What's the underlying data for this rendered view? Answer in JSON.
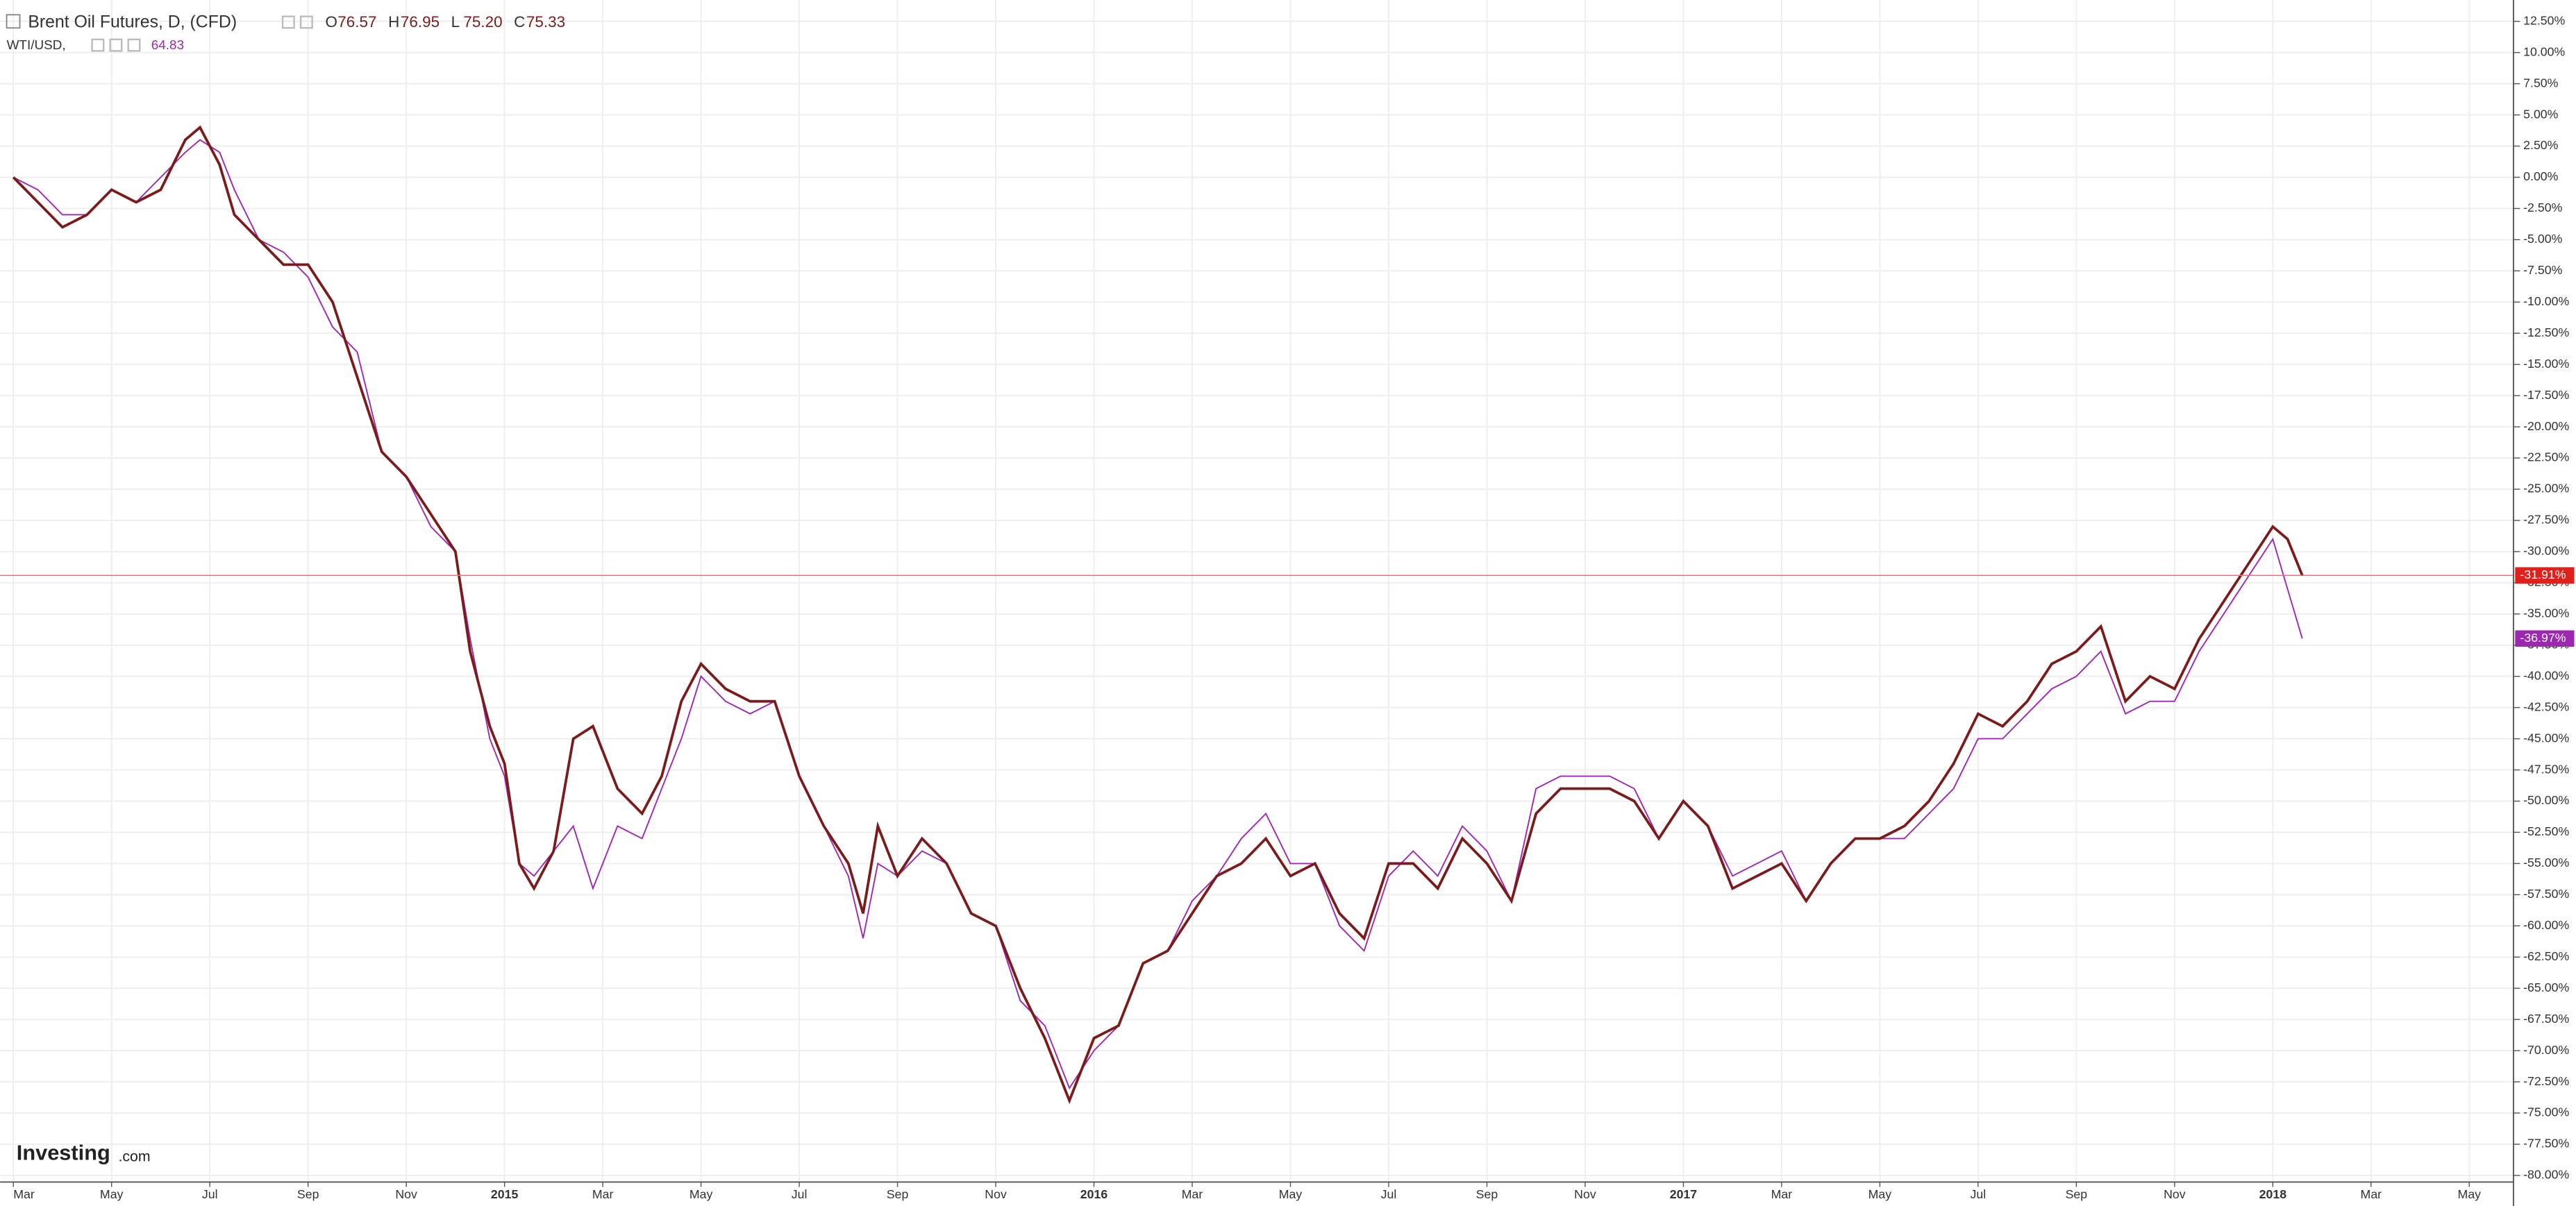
{
  "header": {
    "symbol": "Brent Oil Futures, D, (CFD)",
    "ohlc": [
      {
        "label": "O",
        "value": "76.57"
      },
      {
        "label": "H",
        "value": "76.95"
      },
      {
        "label": "L",
        "value": "75.20"
      },
      {
        "label": "C",
        "value": "75.33"
      }
    ],
    "compare": "WTI/USD,",
    "compare_value": "64.83"
  },
  "logo": {
    "brand": "Investing",
    "suffix": ".com"
  },
  "chart_data": {
    "type": "line",
    "grid": true,
    "xlim": [
      -0.27,
      50.9
    ],
    "ylim": [
      -80.53,
      14.21
    ],
    "xticks": [
      {
        "value": 0,
        "label": "Mar"
      },
      {
        "value": 2,
        "label": "May"
      },
      {
        "value": 4,
        "label": "Jul"
      },
      {
        "value": 6,
        "label": "Sep"
      },
      {
        "value": 8,
        "label": "Nov"
      },
      {
        "value": 10,
        "label": "2015"
      },
      {
        "value": 12,
        "label": "Mar"
      },
      {
        "value": 14,
        "label": "May"
      },
      {
        "value": 16,
        "label": "Jul"
      },
      {
        "value": 18,
        "label": "Sep"
      },
      {
        "value": 20,
        "label": "Nov"
      },
      {
        "value": 22,
        "label": "2016"
      },
      {
        "value": 24,
        "label": "Mar"
      },
      {
        "value": 26,
        "label": "May"
      },
      {
        "value": 28,
        "label": "Jul"
      },
      {
        "value": 30,
        "label": "Sep"
      },
      {
        "value": 32,
        "label": "Nov"
      },
      {
        "value": 34,
        "label": "2017"
      },
      {
        "value": 36,
        "label": "Mar"
      },
      {
        "value": 38,
        "label": "May"
      },
      {
        "value": 40,
        "label": "Jul"
      },
      {
        "value": 42,
        "label": "Sep"
      },
      {
        "value": 44,
        "label": "Nov"
      },
      {
        "value": 46,
        "label": "2018"
      },
      {
        "value": 48,
        "label": "Mar"
      },
      {
        "value": 50,
        "label": "May"
      }
    ],
    "yticks": [
      {
        "value": 12.5,
        "label": "12.50%"
      },
      {
        "value": 10,
        "label": "10.00%"
      },
      {
        "value": 7.5,
        "label": "7.50%"
      },
      {
        "value": 5,
        "label": "5.00%"
      },
      {
        "value": 2.5,
        "label": "2.50%"
      },
      {
        "value": 0,
        "label": "0.00%"
      },
      {
        "value": -2.5,
        "label": "-2.50%"
      },
      {
        "value": -5,
        "label": "-5.00%"
      },
      {
        "value": -7.5,
        "label": "-7.50%"
      },
      {
        "value": -10,
        "label": "-10.00%"
      },
      {
        "value": -12.5,
        "label": "-12.50%"
      },
      {
        "value": -15,
        "label": "-15.00%"
      },
      {
        "value": -17.5,
        "label": "-17.50%"
      },
      {
        "value": -20,
        "label": "-20.00%"
      },
      {
        "value": -22.5,
        "label": "-22.50%"
      },
      {
        "value": -25,
        "label": "-25.00%"
      },
      {
        "value": -27.5,
        "label": "-27.50%"
      },
      {
        "value": -30,
        "label": "-30.00%"
      },
      {
        "value": -32.5,
        "label": "-32.50%"
      },
      {
        "value": -35,
        "label": "-35.00%"
      },
      {
        "value": -37.5,
        "label": "-37.50%"
      },
      {
        "value": -40,
        "label": "-40.00%"
      },
      {
        "value": -42.5,
        "label": "-42.50%"
      },
      {
        "value": -45,
        "label": "-45.00%"
      },
      {
        "value": -47.5,
        "label": "-47.50%"
      },
      {
        "value": -50,
        "label": "-50.00%"
      },
      {
        "value": -52.5,
        "label": "-52.50%"
      },
      {
        "value": -55,
        "label": "-55.00%"
      },
      {
        "value": -57.5,
        "label": "-57.50%"
      },
      {
        "value": -60,
        "label": "-60.00%"
      },
      {
        "value": -62.5,
        "label": "-62.50%"
      },
      {
        "value": -65,
        "label": "-65.00%"
      },
      {
        "value": -67.5,
        "label": "-67.50%"
      },
      {
        "value": -70,
        "label": "-70.00%"
      },
      {
        "value": -72.5,
        "label": "-72.50%"
      },
      {
        "value": -75,
        "label": "-75.00%"
      },
      {
        "value": -77.5,
        "label": "-77.50%"
      },
      {
        "value": -80,
        "label": "-80.00%"
      }
    ],
    "x": [
      0,
      0.5,
      1,
      1.5,
      2,
      2.5,
      3,
      3.5,
      3.8,
      4.2,
      4.5,
      5,
      5.5,
      6,
      6.5,
      7,
      7.5,
      8,
      8.5,
      9,
      9.3,
      9.7,
      10,
      10.3,
      10.6,
      11,
      11.4,
      11.8,
      12.3,
      12.8,
      13.2,
      13.6,
      14,
      14.5,
      15,
      15.5,
      16,
      16.5,
      17,
      17.3,
      17.6,
      18,
      18.5,
      19,
      19.5,
      20,
      20.5,
      21,
      21.5,
      22,
      22.5,
      23,
      23.5,
      24,
      24.5,
      25,
      25.5,
      26,
      26.5,
      27,
      27.5,
      28,
      28.5,
      29,
      29.5,
      30,
      30.5,
      31,
      31.5,
      32,
      32.5,
      33,
      33.5,
      34,
      34.5,
      35,
      35.5,
      36,
      36.5,
      37,
      37.5,
      38,
      38.5,
      39,
      39.5,
      40,
      40.5,
      41,
      41.5,
      42,
      42.5,
      43,
      43.5,
      44,
      44.5,
      45,
      45.5,
      46,
      46.3,
      46.6
    ],
    "series": [
      {
        "name": "WTI/USD",
        "color": "#9c27b0",
        "last_label": "-36.97%",
        "values": [
          0,
          -1,
          -3,
          -3,
          -1,
          -2,
          0,
          2,
          3,
          2,
          -1,
          -5,
          -6,
          -8,
          -12,
          -14,
          -22,
          -24,
          -28,
          -30,
          -37,
          -45,
          -48,
          -55,
          -56,
          -54,
          -52,
          -57,
          -52,
          -53,
          -49,
          -45,
          -40,
          -42,
          -43,
          -42,
          -48,
          -52,
          -56,
          -61,
          -55,
          -56,
          -54,
          -55,
          -59,
          -60,
          -66,
          -68,
          -73,
          -70,
          -68,
          -63,
          -62,
          -58,
          -56,
          -53,
          -51,
          -55,
          -55,
          -60,
          -62,
          -56,
          -54,
          -56,
          -52,
          -54,
          -58,
          -49,
          -48,
          -48,
          -48,
          -49,
          -53,
          -50,
          -52,
          -56,
          -55,
          -54,
          -58,
          -55,
          -53,
          -53,
          -53,
          -51,
          -49,
          -45,
          -45,
          -43,
          -41,
          -40,
          -38,
          -43,
          -42,
          -42,
          -38,
          -35,
          -32,
          -29,
          -33,
          -36.97
        ]
      },
      {
        "name": "Brent Oil Futures",
        "color": "#7b1c1c",
        "last_label": "-31.91%",
        "values": [
          0,
          -2,
          -4,
          -3,
          -1,
          -2,
          -1,
          3,
          4,
          1,
          -3,
          -5,
          -7,
          -7,
          -10,
          -16,
          -22,
          -24,
          -27,
          -30,
          -38,
          -44,
          -47,
          -55,
          -57,
          -54,
          -45,
          -44,
          -49,
          -51,
          -48,
          -42,
          -39,
          -41,
          -42,
          -42,
          -48,
          -52,
          -55,
          -59,
          -52,
          -56,
          -53,
          -55,
          -59,
          -60,
          -65,
          -69,
          -74,
          -69,
          -68,
          -63,
          -62,
          -59,
          -56,
          -55,
          -53,
          -56,
          -55,
          -59,
          -61,
          -55,
          -55,
          -57,
          -53,
          -55,
          -58,
          -51,
          -49,
          -49,
          -49,
          -50,
          -53,
          -50,
          -52,
          -57,
          -56,
          -55,
          -58,
          -55,
          -53,
          -53,
          -52,
          -50,
          -47,
          -43,
          -44,
          -42,
          -39,
          -38,
          -36,
          -42,
          -40,
          -41,
          -37,
          -34,
          -31,
          -28,
          -29,
          -31.91
        ]
      }
    ]
  }
}
